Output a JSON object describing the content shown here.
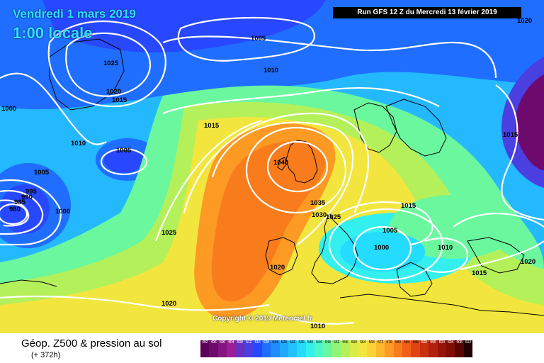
{
  "header": {
    "date": "Vendredi 1 mars 2019",
    "local_time": "1:00 locale",
    "run_info": "Run GFS 12 Z du Mercredi 13 février 2019"
  },
  "copyright": "Copyright © 2019 Meteociel.fr",
  "footer": {
    "title": "Géop. Z500 & pression au sol",
    "subtitle": "(+ 372h)"
  },
  "legend_scale": {
    "values": [
      "492",
      "496",
      "500",
      "504",
      "508",
      "512",
      "516",
      "520",
      "524",
      "528",
      "532",
      "536",
      "540",
      "544",
      "548",
      "552",
      "556",
      "560",
      "564",
      "568",
      "572",
      "576",
      "580",
      "584",
      "588",
      "592",
      "596",
      "600",
      "604",
      "608",
      "612"
    ],
    "colors": [
      "#5a005a",
      "#6e0a6e",
      "#84147f",
      "#9a1e96",
      "#6a2fbf",
      "#4a3fe0",
      "#2848ff",
      "#1e6eff",
      "#1f8cff",
      "#21a8ff",
      "#22c4ff",
      "#24dcff",
      "#33f0ee",
      "#4cf7c8",
      "#6bf79e",
      "#8ff478",
      "#b4f05a",
      "#d8ec48",
      "#f2e63e",
      "#fcd23a",
      "#fdb82e",
      "#fc9a24",
      "#f87c1c",
      "#f05e18",
      "#e04414",
      "#c83010",
      "#b0200c",
      "#981408",
      "#800c06",
      "#580604",
      "#200000"
    ]
  },
  "isobars": [
    {
      "label": "1025"
    },
    {
      "label": "1020"
    },
    {
      "label": "1015"
    },
    {
      "label": "1005"
    },
    {
      "label": "1010"
    },
    {
      "label": "1000"
    },
    {
      "label": "1010"
    },
    {
      "label": "1005"
    },
    {
      "label": "1005"
    },
    {
      "label": "995"
    },
    {
      "label": "990"
    },
    {
      "label": "985"
    },
    {
      "label": "980"
    },
    {
      "label": "1000"
    },
    {
      "label": "1025"
    },
    {
      "label": "1015"
    },
    {
      "label": "1040"
    },
    {
      "label": "1035"
    },
    {
      "label": "1030"
    },
    {
      "label": "1025"
    },
    {
      "label": "1020"
    },
    {
      "label": "1020"
    },
    {
      "label": "1010"
    },
    {
      "label": "1015"
    },
    {
      "label": "1005"
    },
    {
      "label": "1000"
    },
    {
      "label": "1010"
    },
    {
      "label": "1015"
    },
    {
      "label": "1020"
    },
    {
      "label": "1015"
    },
    {
      "label": "1020"
    }
  ]
}
